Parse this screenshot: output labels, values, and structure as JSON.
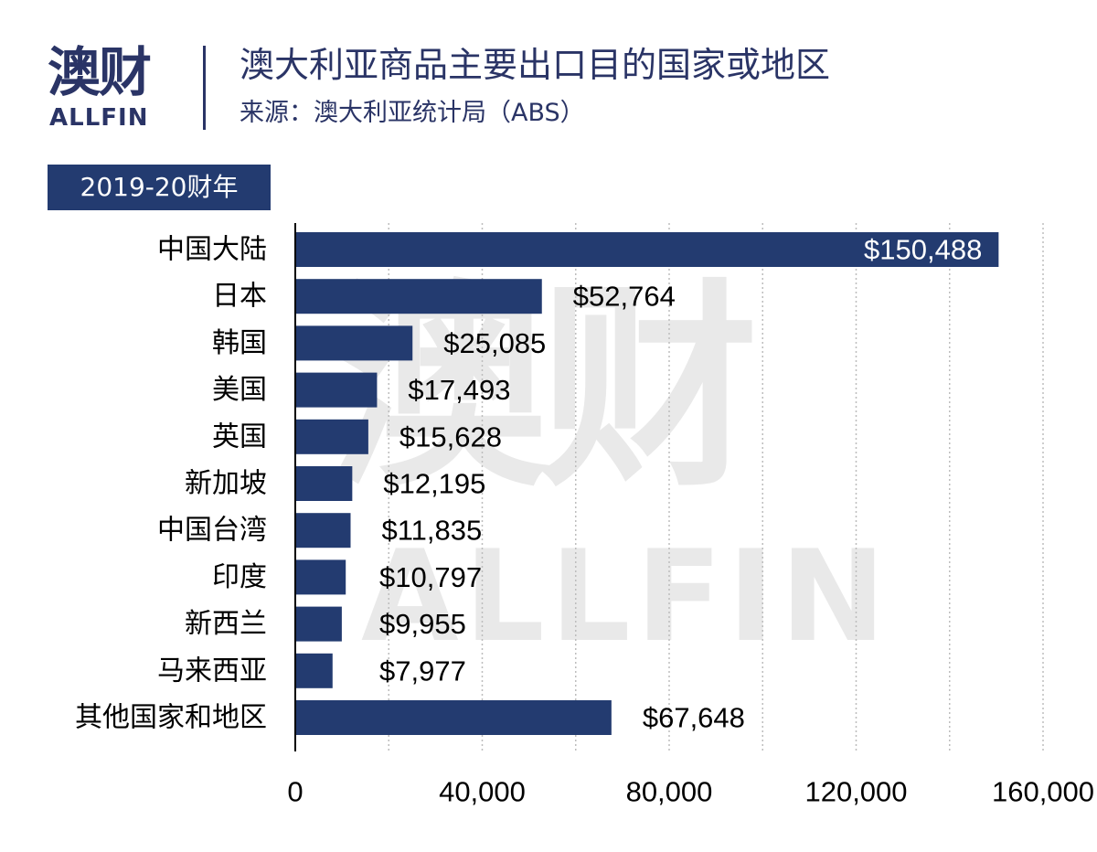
{
  "brand": {
    "name_cn": "澳财",
    "name_en": "ALLFIN"
  },
  "header": {
    "title": "澳大利亚商品主要出口目的国家或地区",
    "source": "来源：澳大利亚统计局（ABS）"
  },
  "period_badge": "2019-20财年",
  "watermark": {
    "cn": "澳财",
    "en": "ALLFIN"
  },
  "colors": {
    "bar": "#233b70",
    "brand": "#2a3466"
  },
  "chart_data": {
    "type": "bar",
    "orientation": "horizontal",
    "categories": [
      "中国大陆",
      "日本",
      "韩国",
      "美国",
      "英国",
      "新加坡",
      "中国台湾",
      "印度",
      "新西兰",
      "马来西亚",
      "其他国家和地区"
    ],
    "values": [
      150488,
      52764,
      25085,
      17493,
      15628,
      12195,
      11835,
      10797,
      9955,
      7977,
      67648
    ],
    "value_labels": [
      "$150,488",
      "$52,764",
      "$25,085",
      "$17,493",
      "$15,628",
      "$12,195",
      "$11,835",
      "$10,797",
      "$9,955",
      "$7,977",
      "$67,648"
    ],
    "xlim": [
      0,
      160000
    ],
    "x_ticks": [
      0,
      40000,
      80000,
      120000,
      160000
    ],
    "x_tick_labels": [
      "0",
      "40,000",
      "80,000",
      "120,000",
      "160,000"
    ],
    "grid": "vertical-dotted",
    "title": "",
    "xlabel": "",
    "ylabel": ""
  }
}
